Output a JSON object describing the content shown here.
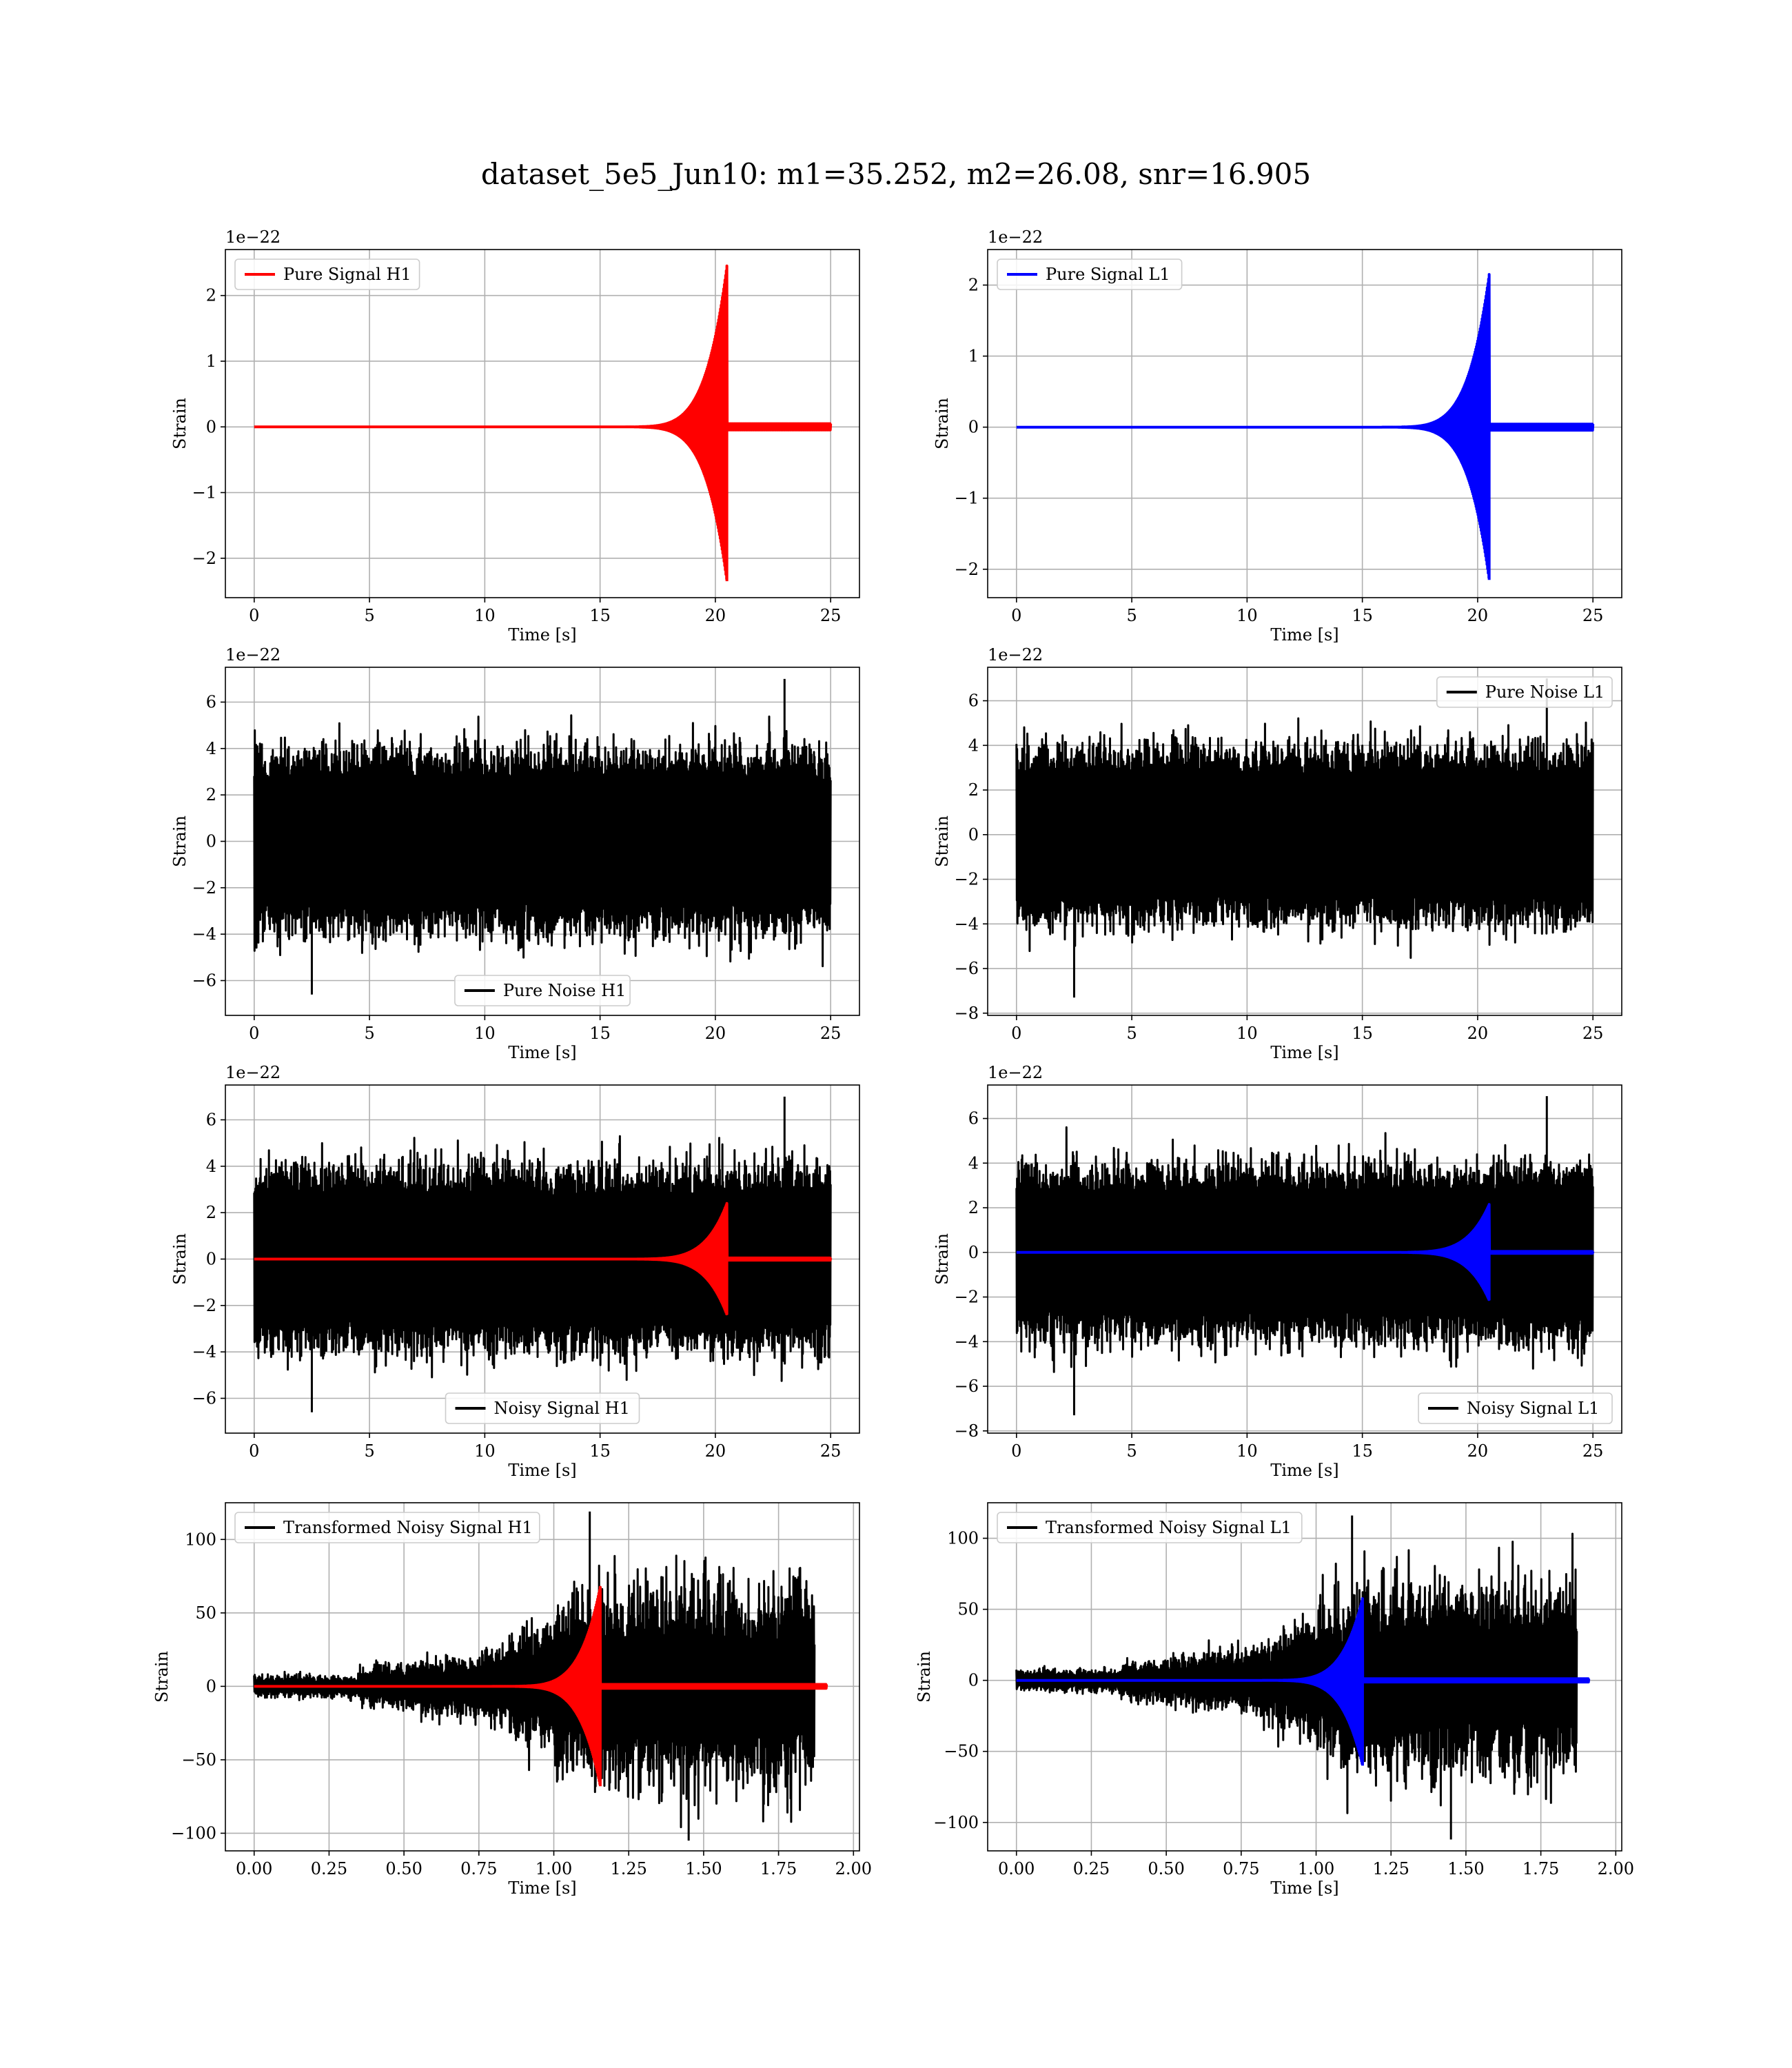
{
  "figure": {
    "title": "dataset_5e5_Jun10: m1=35.252, m2=26.08, snr=16.905"
  },
  "chart_data": [
    {
      "type": "line",
      "panel": "pure-signal-h1",
      "xlabel": "Time [s]",
      "ylabel": "Strain",
      "offset_text": "1e−22",
      "xlim": [
        -1.25,
        26.25
      ],
      "ylim": [
        -2.6,
        2.7
      ],
      "xticks": [
        0,
        5,
        10,
        15,
        20,
        25
      ],
      "xtick_labels": [
        "0",
        "5",
        "10",
        "15",
        "20",
        "25"
      ],
      "yticks": [
        -2,
        -1,
        0,
        1,
        2
      ],
      "ytick_labels": [
        "−2",
        "−1",
        "0",
        "1",
        "2"
      ],
      "legend_loc": "upper left",
      "grid": true,
      "series": [
        {
          "name": "Pure Signal H1",
          "color": "#ff0000",
          "kind": "chirp",
          "t0": 0,
          "tend": 25,
          "tc": 20.5,
          "peak_pos": 2.45,
          "peak_neg": -2.35,
          "t_start": 15
        }
      ]
    },
    {
      "type": "line",
      "panel": "pure-signal-l1",
      "xlabel": "Time [s]",
      "ylabel": "Strain",
      "offset_text": "1e−22",
      "xlim": [
        -1.25,
        26.25
      ],
      "ylim": [
        -2.4,
        2.5
      ],
      "xticks": [
        0,
        5,
        10,
        15,
        20,
        25
      ],
      "xtick_labels": [
        "0",
        "5",
        "10",
        "15",
        "20",
        "25"
      ],
      "yticks": [
        -2,
        -1,
        0,
        1,
        2
      ],
      "ytick_labels": [
        "−2",
        "−1",
        "0",
        "1",
        "2"
      ],
      "legend_loc": "upper left",
      "grid": true,
      "series": [
        {
          "name": "Pure Signal L1",
          "color": "#0000ff",
          "kind": "chirp",
          "t0": 0,
          "tend": 25,
          "tc": 20.5,
          "peak_pos": 2.15,
          "peak_neg": -2.15,
          "t_start": 15
        }
      ]
    },
    {
      "type": "line",
      "panel": "pure-noise-h1",
      "xlabel": "Time [s]",
      "ylabel": "Strain",
      "offset_text": "1e−22",
      "xlim": [
        -1.25,
        26.25
      ],
      "ylim": [
        -7.5,
        7.5
      ],
      "xticks": [
        0,
        5,
        10,
        15,
        20,
        25
      ],
      "xtick_labels": [
        "0",
        "5",
        "10",
        "15",
        "20",
        "25"
      ],
      "yticks": [
        -6,
        -4,
        -2,
        0,
        2,
        4,
        6
      ],
      "ytick_labels": [
        "−6",
        "−4",
        "−2",
        "0",
        "2",
        "4",
        "6"
      ],
      "legend_loc": "lower center",
      "grid": true,
      "series": [
        {
          "name": "Pure Noise H1",
          "color": "#000000",
          "kind": "noise",
          "t0": 0,
          "tend": 25,
          "core": 3.5,
          "max_pos": 7.0,
          "max_neg": -6.6
        }
      ]
    },
    {
      "type": "line",
      "panel": "pure-noise-l1",
      "xlabel": "Time [s]",
      "ylabel": "Strain",
      "offset_text": "1e−22",
      "xlim": [
        -1.25,
        26.25
      ],
      "ylim": [
        -8.1,
        7.5
      ],
      "xticks": [
        0,
        5,
        10,
        15,
        20,
        25
      ],
      "xtick_labels": [
        "0",
        "5",
        "10",
        "15",
        "20",
        "25"
      ],
      "yticks": [
        -8,
        -6,
        -4,
        -2,
        0,
        2,
        4,
        6
      ],
      "ytick_labels": [
        "−8",
        "−6",
        "−4",
        "−2",
        "0",
        "2",
        "4",
        "6"
      ],
      "legend_loc": "upper right",
      "grid": true,
      "series": [
        {
          "name": "Pure Noise L1",
          "color": "#000000",
          "kind": "noise",
          "t0": 0,
          "tend": 25,
          "core": 3.5,
          "max_pos": 7.0,
          "max_neg": -7.3
        }
      ]
    },
    {
      "type": "line",
      "panel": "noisy-signal-h1",
      "xlabel": "Time [s]",
      "ylabel": "Strain",
      "offset_text": "1e−22",
      "xlim": [
        -1.25,
        26.25
      ],
      "ylim": [
        -7.5,
        7.5
      ],
      "xticks": [
        0,
        5,
        10,
        15,
        20,
        25
      ],
      "xtick_labels": [
        "0",
        "5",
        "10",
        "15",
        "20",
        "25"
      ],
      "yticks": [
        -6,
        -4,
        -2,
        0,
        2,
        4,
        6
      ],
      "ytick_labels": [
        "−6",
        "−4",
        "−2",
        "0",
        "2",
        "4",
        "6"
      ],
      "legend_loc": "lower center",
      "grid": true,
      "series": [
        {
          "name": "Noisy Signal H1",
          "color": "#000000",
          "kind": "noise",
          "t0": 0,
          "tend": 25,
          "core": 3.5,
          "max_pos": 7.0,
          "max_neg": -6.6
        },
        {
          "name": "",
          "color": "#ff0000",
          "kind": "chirp",
          "t0": 0,
          "tend": 25,
          "tc": 20.5,
          "peak_pos": 2.4,
          "peak_neg": -2.4,
          "t_start": 15
        }
      ]
    },
    {
      "type": "line",
      "panel": "noisy-signal-l1",
      "xlabel": "Time [s]",
      "ylabel": "Strain",
      "offset_text": "1e−22",
      "xlim": [
        -1.25,
        26.25
      ],
      "ylim": [
        -8.1,
        7.5
      ],
      "xticks": [
        0,
        5,
        10,
        15,
        20,
        25
      ],
      "xtick_labels": [
        "0",
        "5",
        "10",
        "15",
        "20",
        "25"
      ],
      "yticks": [
        -8,
        -6,
        -4,
        -2,
        0,
        2,
        4,
        6
      ],
      "ytick_labels": [
        "−8",
        "−6",
        "−4",
        "−2",
        "0",
        "2",
        "4",
        "6"
      ],
      "legend_loc": "lower right",
      "grid": true,
      "series": [
        {
          "name": "Noisy Signal L1",
          "color": "#000000",
          "kind": "noise",
          "t0": 0,
          "tend": 25,
          "core": 3.5,
          "max_pos": 7.0,
          "max_neg": -7.3
        },
        {
          "name": "",
          "color": "#0000ff",
          "kind": "chirp",
          "t0": 0,
          "tend": 25,
          "tc": 20.5,
          "peak_pos": 2.15,
          "peak_neg": -2.15,
          "t_start": 15
        }
      ]
    },
    {
      "type": "line",
      "panel": "transformed-h1",
      "xlabel": "Time [s]",
      "ylabel": "Strain",
      "offset_text": "",
      "xlim": [
        -0.096,
        2.02
      ],
      "ylim": [
        -112,
        125
      ],
      "xticks": [
        0,
        0.25,
        0.5,
        0.75,
        1.0,
        1.25,
        1.5,
        1.75,
        2.0
      ],
      "xtick_labels": [
        "0.00",
        "0.25",
        "0.50",
        "0.75",
        "1.00",
        "1.25",
        "1.50",
        "1.75",
        "2.00"
      ],
      "yticks": [
        -100,
        -50,
        0,
        50,
        100
      ],
      "ytick_labels": [
        "−100",
        "−50",
        "0",
        "50",
        "100"
      ],
      "legend_loc": "upper left",
      "grid": true,
      "series": [
        {
          "name": "Transformed Noisy Signal H1",
          "color": "#000000",
          "kind": "wnoise",
          "t0": 0,
          "tend": 1.91,
          "t_end_noise": 1.87,
          "peak_pos": 119,
          "peak_neg": -105
        },
        {
          "name": "",
          "color": "#ff0000",
          "kind": "chirp",
          "t0": 0,
          "tend": 1.91,
          "tc": 1.155,
          "peak_pos": 68,
          "peak_neg": -68,
          "t_start": 0.75
        }
      ]
    },
    {
      "type": "line",
      "panel": "transformed-l1",
      "xlabel": "Time [s]",
      "ylabel": "Strain",
      "offset_text": "",
      "xlim": [
        -0.096,
        2.02
      ],
      "ylim": [
        -120,
        125
      ],
      "xticks": [
        0,
        0.25,
        0.5,
        0.75,
        1.0,
        1.25,
        1.5,
        1.75,
        2.0
      ],
      "xtick_labels": [
        "0.00",
        "0.25",
        "0.50",
        "0.75",
        "1.00",
        "1.25",
        "1.50",
        "1.75",
        "2.00"
      ],
      "yticks": [
        -100,
        -50,
        0,
        50,
        100
      ],
      "ytick_labels": [
        "−100",
        "−50",
        "0",
        "50",
        "100"
      ],
      "legend_loc": "upper left",
      "grid": true,
      "series": [
        {
          "name": "Transformed Noisy Signal L1",
          "color": "#000000",
          "kind": "wnoise",
          "t0": 0,
          "tend": 1.91,
          "t_end_noise": 1.87,
          "peak_pos": 116,
          "peak_neg": -112
        },
        {
          "name": "",
          "color": "#0000ff",
          "kind": "chirp",
          "t0": 0,
          "tend": 1.91,
          "tc": 1.155,
          "peak_pos": 58,
          "peak_neg": -60,
          "t_start": 0.75
        }
      ]
    }
  ]
}
